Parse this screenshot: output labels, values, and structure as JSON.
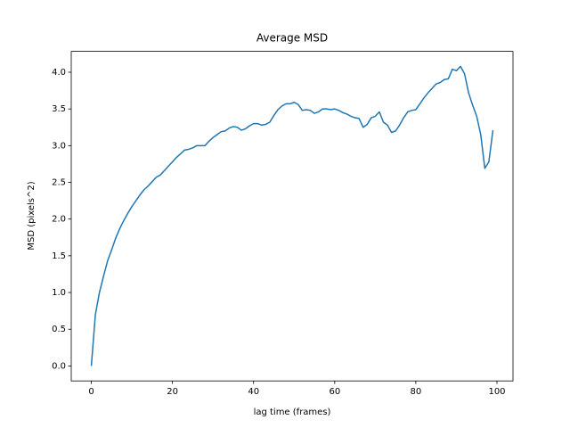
{
  "chart_data": {
    "type": "line",
    "title": "Average MSD",
    "x_label": "lag time (frames)",
    "y_label": "MSD (pixels^2)",
    "x": [
      0,
      1,
      2,
      3,
      4,
      5,
      6,
      7,
      8,
      9,
      10,
      11,
      12,
      13,
      14,
      15,
      16,
      17,
      18,
      19,
      20,
      21,
      22,
      23,
      24,
      25,
      26,
      27,
      28,
      29,
      30,
      31,
      32,
      33,
      34,
      35,
      36,
      37,
      38,
      39,
      40,
      41,
      42,
      43,
      44,
      45,
      46,
      47,
      48,
      49,
      50,
      51,
      52,
      53,
      54,
      55,
      56,
      57,
      58,
      59,
      60,
      61,
      62,
      63,
      64,
      65,
      66,
      67,
      68,
      69,
      70,
      71,
      72,
      73,
      74,
      75,
      76,
      77,
      78,
      79,
      80,
      81,
      82,
      83,
      84,
      85,
      86,
      87,
      88,
      89,
      90,
      91,
      92,
      93,
      94,
      95,
      96,
      97,
      98,
      99
    ],
    "series": [
      {
        "color": "#1f77b4",
        "values": [
          0,
          0.7,
          1.0,
          1.22,
          1.43,
          1.58,
          1.74,
          1.87,
          1.98,
          2.08,
          2.17,
          2.25,
          2.33,
          2.4,
          2.45,
          2.51,
          2.57,
          2.6,
          2.66,
          2.72,
          2.78,
          2.84,
          2.89,
          2.94,
          2.95,
          2.97,
          3.0,
          3.0,
          3.0,
          3.06,
          3.11,
          3.15,
          3.19,
          3.2,
          3.24,
          3.26,
          3.25,
          3.21,
          3.23,
          3.27,
          3.3,
          3.3,
          3.28,
          3.29,
          3.32,
          3.41,
          3.49,
          3.54,
          3.57,
          3.57,
          3.59,
          3.56,
          3.48,
          3.49,
          3.48,
          3.44,
          3.46,
          3.5,
          3.5,
          3.49,
          3.5,
          3.48,
          3.45,
          3.43,
          3.4,
          3.38,
          3.37,
          3.25,
          3.29,
          3.38,
          3.4,
          3.46,
          3.32,
          3.28,
          3.18,
          3.2,
          3.28,
          3.38,
          3.46,
          3.48,
          3.49,
          3.57,
          3.65,
          3.72,
          3.78,
          3.84,
          3.86,
          3.9,
          3.91,
          4.04,
          4.02,
          4.08,
          3.98,
          3.72,
          3.55,
          3.4,
          3.15,
          2.69,
          2.78,
          3.21
        ]
      }
    ],
    "xlim": [
      -4.95,
      103.95
    ],
    "xticks": [
      0,
      20,
      40,
      60,
      80,
      100
    ],
    "ylim": [
      -0.204,
      4.284
    ],
    "yticks": [
      {
        "value": 0,
        "label": "0.0"
      },
      {
        "value": 0.5,
        "label": "0.5"
      },
      {
        "value": 1,
        "label": "1.0"
      },
      {
        "value": 1.5,
        "label": "1.5"
      },
      {
        "value": 2,
        "label": "2.0"
      },
      {
        "value": 2.5,
        "label": "2.5"
      },
      {
        "value": 3,
        "label": "3.0"
      },
      {
        "value": 3.5,
        "label": "3.5"
      },
      {
        "value": 4,
        "label": "4.0"
      }
    ]
  }
}
